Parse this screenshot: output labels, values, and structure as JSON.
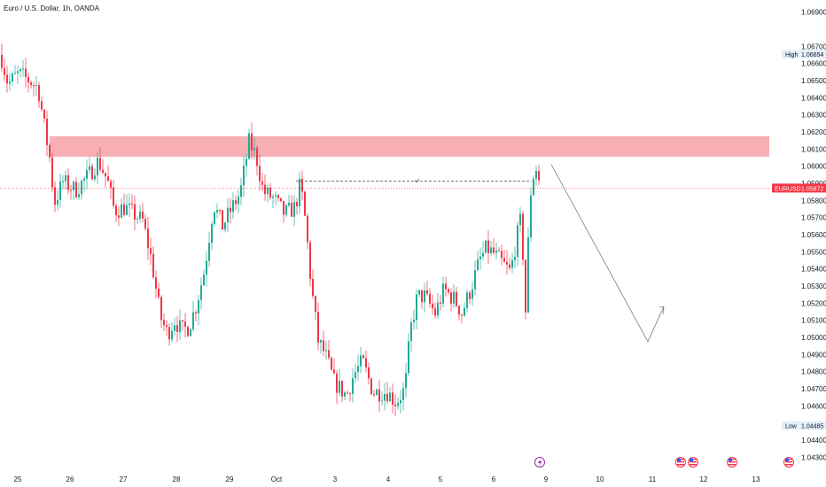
{
  "header": {
    "title": "Euro / U.S. Dollar, 1h, OANDA"
  },
  "colors": {
    "up": "#22ab94",
    "down": "#f23645",
    "zone": "#f7a1a6",
    "current": "#f23645",
    "axis_text": "#131722",
    "tag_bg": "#e3effd",
    "projection": "#787b86"
  },
  "chart_data": {
    "type": "candlestick",
    "title": "Euro / U.S. Dollar, 1h, OANDA",
    "symbol": "EURUSD",
    "ylim": [
      1.0425,
      1.0695
    ],
    "y_ticks": [
      "1.06900",
      "1.06700",
      "1.06600",
      "1.06500",
      "1.06400",
      "1.06300",
      "1.06200",
      "1.06100",
      "1.06000",
      "1.05900",
      "1.05800",
      "1.05700",
      "1.05600",
      "1.05500",
      "1.05400",
      "1.05300",
      "1.05200",
      "1.05100",
      "1.05000",
      "1.04900",
      "1.04800",
      "1.04700",
      "1.04600",
      "1.04400",
      "1.04300"
    ],
    "x_ticks": [
      "25",
      "26",
      "27",
      "28",
      "29",
      "Oct",
      "3",
      "4",
      "5",
      "6",
      "9",
      "10",
      "11",
      "12",
      "13"
    ],
    "price_path": [
      [
        0,
        1.0665
      ],
      [
        8,
        1.0648
      ],
      [
        20,
        1.0654
      ],
      [
        32,
        1.065
      ],
      [
        42,
        1.0646
      ],
      [
        50,
        1.062
      ],
      [
        56,
        1.0602
      ],
      [
        60,
        1.0578
      ],
      [
        70,
        1.0591
      ],
      [
        84,
        1.0586
      ],
      [
        98,
        1.0594
      ],
      [
        110,
        1.0603
      ],
      [
        120,
        1.0592
      ],
      [
        128,
        1.0574
      ],
      [
        140,
        1.0576
      ],
      [
        160,
        1.0568
      ],
      [
        170,
        1.0545
      ],
      [
        180,
        1.0512
      ],
      [
        188,
        1.0502
      ],
      [
        196,
        1.051
      ],
      [
        204,
        1.0504
      ],
      [
        212,
        1.0506
      ],
      [
        220,
        1.0518
      ],
      [
        230,
        1.054
      ],
      [
        240,
        1.0578
      ],
      [
        250,
        1.0565
      ],
      [
        260,
        1.0575
      ],
      [
        270,
        1.0584
      ],
      [
        280,
        1.0614
      ],
      [
        288,
        1.0606
      ],
      [
        296,
        1.0585
      ],
      [
        308,
        1.0581
      ],
      [
        320,
        1.0572
      ],
      [
        332,
        1.0576
      ],
      [
        338,
        1.059
      ],
      [
        344,
        1.0566
      ],
      [
        350,
        1.0531
      ],
      [
        358,
        1.0498
      ],
      [
        366,
        1.049
      ],
      [
        376,
        1.0474
      ],
      [
        390,
        1.0466
      ],
      [
        398,
        1.0478
      ],
      [
        408,
        1.0486
      ],
      [
        420,
        1.0468
      ],
      [
        436,
        1.0468
      ],
      [
        446,
        1.0462
      ],
      [
        456,
        1.047
      ],
      [
        462,
        1.0504
      ],
      [
        470,
        1.0524
      ],
      [
        478,
        1.0524
      ],
      [
        490,
        1.0514
      ],
      [
        500,
        1.0528
      ],
      [
        512,
        1.0522
      ],
      [
        520,
        1.0514
      ],
      [
        530,
        1.0528
      ],
      [
        540,
        1.0545
      ],
      [
        548,
        1.0552
      ],
      [
        556,
        1.0549
      ],
      [
        568,
        1.0542
      ],
      [
        575,
        1.0538
      ],
      [
        582,
        1.0558
      ],
      [
        588,
        1.0572
      ],
      [
        591,
        1.0502
      ],
      [
        597,
        1.0582
      ],
      [
        603,
        1.0601
      ],
      [
        609,
        1.0587
      ]
    ],
    "resistance_zone": {
      "low": 1.06055,
      "high": 1.06175
    },
    "dashed_level": 1.05912,
    "projection": [
      [
        609,
        1.0601
      ],
      [
        731,
        1.04975
      ],
      [
        749,
        1.0518
      ]
    ],
    "high_value": "1.06654",
    "low_value": "1.04485",
    "current_value": "1.05872",
    "high_label": "High",
    "low_label": "Low",
    "grid": false
  }
}
